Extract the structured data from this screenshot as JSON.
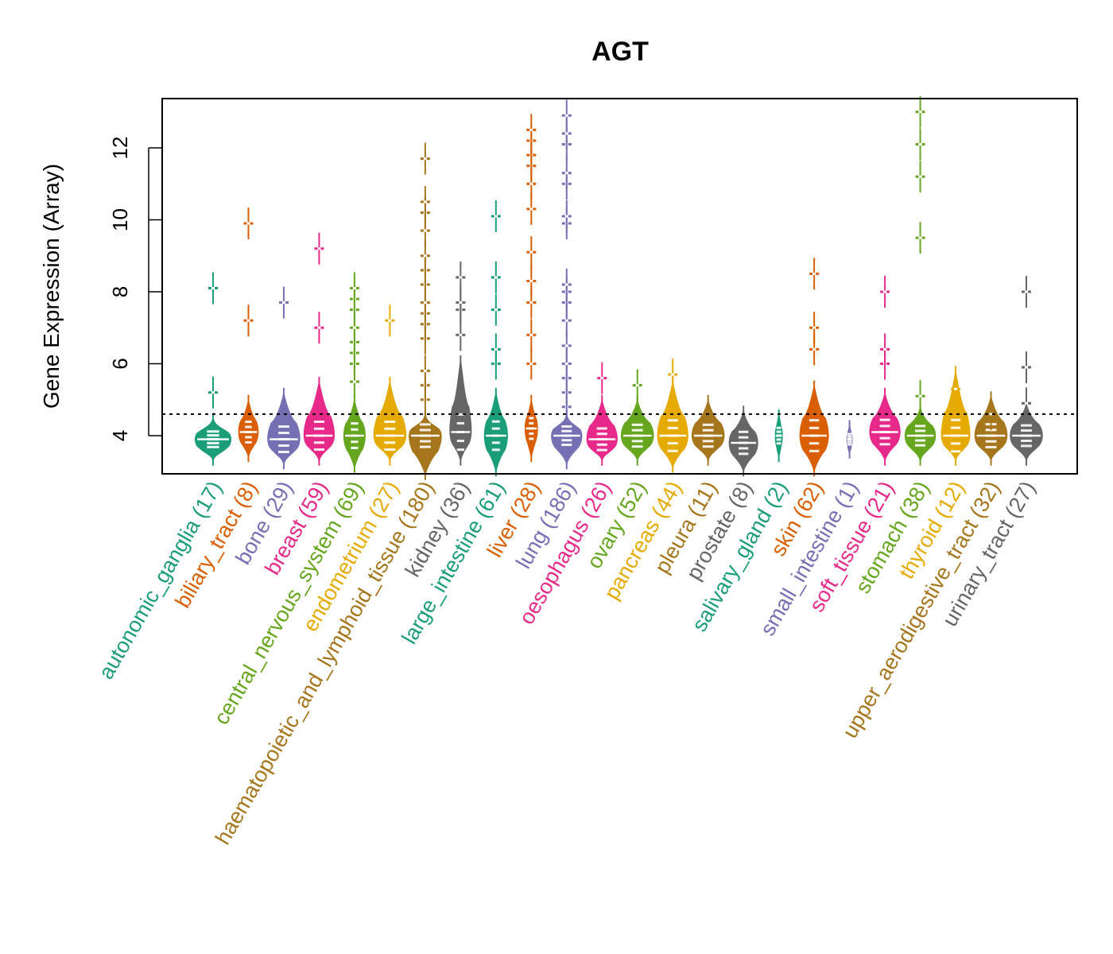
{
  "chart_data": {
    "type": "violin",
    "title": "AGT",
    "xlabel": "",
    "ylabel": "Gene Expression (Array)",
    "ylim": [
      2.9,
      13.3
    ],
    "yticks": [
      4,
      6,
      8,
      10,
      12
    ],
    "reference_line": 4.6,
    "grid": false,
    "legend": "none",
    "categories": [
      {
        "name": "autonomic_ganglia",
        "n": 17,
        "label": "autonomic_ganglia (17)",
        "color": "#1B9E77",
        "median": 3.9,
        "body": [
          3.3,
          4.5
        ],
        "width": 1.0,
        "outliers": [
          5.2,
          8.1
        ]
      },
      {
        "name": "biliary_tract",
        "n": 8,
        "label": "biliary_tract (8)",
        "color": "#D95F02",
        "median": 4.1,
        "body": [
          3.4,
          5.0
        ],
        "width": 0.55,
        "outliers": [
          7.2,
          9.9
        ]
      },
      {
        "name": "bone",
        "n": 29,
        "label": "bone (29)",
        "color": "#7570B3",
        "median": 3.9,
        "body": [
          3.2,
          5.2
        ],
        "width": 0.9,
        "outliers": [
          7.7
        ]
      },
      {
        "name": "breast",
        "n": 59,
        "label": "breast (59)",
        "color": "#E7298A",
        "median": 4.0,
        "body": [
          3.3,
          5.5
        ],
        "width": 0.85,
        "outliers": [
          7.0,
          9.2
        ]
      },
      {
        "name": "central_nervous_system",
        "n": 69,
        "label": "central_nervous_system (69)",
        "color": "#66A61E",
        "median": 4.0,
        "body": [
          3.1,
          5.0
        ],
        "width": 0.6,
        "outliers": [
          5.5,
          6.0,
          6.3,
          6.6,
          7.0,
          7.5,
          7.8,
          8.1
        ]
      },
      {
        "name": "endometrium",
        "n": 27,
        "label": "endometrium (27)",
        "color": "#E6AB02",
        "median": 4.0,
        "body": [
          3.3,
          5.5
        ],
        "width": 0.9,
        "outliers": [
          7.2
        ]
      },
      {
        "name": "haematopoietic_and_lymphoid_tissue",
        "n": 180,
        "label": "haematopoietic_and_lymphoid_tissue (180)",
        "color": "#A6761D",
        "median": 4.0,
        "body": [
          2.9,
          4.6
        ],
        "width": 0.9,
        "outliers": [
          5.0,
          5.4,
          5.8,
          6.7,
          7.1,
          7.4,
          7.7,
          8.2,
          8.6,
          9.0,
          9.7,
          10.2,
          10.5,
          11.7
        ]
      },
      {
        "name": "kidney",
        "n": 36,
        "label": "kidney (36)",
        "color": "#666666",
        "median": 4.1,
        "body": [
          3.3,
          6.1
        ],
        "width": 0.6,
        "outliers": [
          6.8,
          7.5,
          7.7,
          8.4
        ]
      },
      {
        "name": "large_intestine",
        "n": 61,
        "label": "large_intestine (61)",
        "color": "#1B9E77",
        "median": 4.0,
        "body": [
          3.0,
          5.2
        ],
        "width": 0.65,
        "outliers": [
          6.0,
          6.4,
          7.5,
          8.4,
          10.1
        ]
      },
      {
        "name": "liver",
        "n": 28,
        "label": "liver (28)",
        "color": "#D95F02",
        "median": 4.2,
        "body": [
          3.4,
          5.0
        ],
        "width": 0.35,
        "outliers": [
          6.0,
          6.8,
          7.7,
          8.3,
          9.1,
          10.3,
          11.0,
          11.5,
          11.8,
          12.2,
          12.5
        ]
      },
      {
        "name": "lung",
        "n": 186,
        "label": "lung (186)",
        "color": "#7570B3",
        "median": 4.0,
        "body": [
          3.2,
          4.6
        ],
        "width": 0.85,
        "outliers": [
          4.8,
          5.2,
          5.6,
          6.0,
          6.5,
          7.2,
          7.7,
          8.0,
          8.2,
          9.9,
          10.1,
          11.0,
          11.3,
          12.1,
          12.4,
          12.9
        ]
      },
      {
        "name": "oesophagus",
        "n": 26,
        "label": "oesophagus (26)",
        "color": "#E7298A",
        "median": 3.9,
        "body": [
          3.3,
          5.0
        ],
        "width": 0.85,
        "outliers": [
          5.6
        ]
      },
      {
        "name": "ovary",
        "n": 52,
        "label": "ovary (52)",
        "color": "#66A61E",
        "median": 4.0,
        "body": [
          3.3,
          5.0
        ],
        "width": 0.9,
        "outliers": [
          5.4
        ]
      },
      {
        "name": "pancreas",
        "n": 44,
        "label": "pancreas (44)",
        "color": "#E6AB02",
        "median": 4.0,
        "body": [
          3.1,
          5.5
        ],
        "width": 0.85,
        "outliers": [
          5.7
        ]
      },
      {
        "name": "pleura",
        "n": 11,
        "label": "pleura (11)",
        "color": "#A6761D",
        "median": 4.0,
        "body": [
          3.3,
          5.0
        ],
        "width": 0.9,
        "outliers": []
      },
      {
        "name": "prostate",
        "n": 8,
        "label": "prostate (8)",
        "color": "#666666",
        "median": 3.8,
        "body": [
          3.0,
          4.7
        ],
        "width": 0.8,
        "outliers": []
      },
      {
        "name": "salivary_gland",
        "n": 2,
        "label": "salivary_gland (2)",
        "color": "#1B9E77",
        "median": 4.0,
        "body": [
          3.4,
          4.6
        ],
        "width": 0.2,
        "outliers": []
      },
      {
        "name": "skin",
        "n": 62,
        "label": "skin (62)",
        "color": "#D95F02",
        "median": 4.0,
        "body": [
          3.0,
          5.4
        ],
        "width": 0.8,
        "outliers": [
          6.4,
          7.0,
          8.5
        ]
      },
      {
        "name": "small_intestine",
        "n": 1,
        "label": "small_intestine (1)",
        "color": "#7570B3",
        "median": 3.9,
        "body": [
          3.5,
          4.3
        ],
        "width": 0.15,
        "outliers": []
      },
      {
        "name": "soft_tissue",
        "n": 21,
        "label": "soft_tissue (21)",
        "color": "#E7298A",
        "median": 4.1,
        "body": [
          3.3,
          5.2
        ],
        "width": 0.85,
        "outliers": [
          6.0,
          6.4,
          8.0
        ]
      },
      {
        "name": "stomach",
        "n": 38,
        "label": "stomach (38)",
        "color": "#66A61E",
        "median": 4.0,
        "body": [
          3.3,
          4.8
        ],
        "width": 0.85,
        "outliers": [
          5.1,
          9.5,
          11.2,
          12.1,
          13.0
        ]
      },
      {
        "name": "thyroid",
        "n": 12,
        "label": "thyroid (12)",
        "color": "#E6AB02",
        "median": 4.0,
        "body": [
          3.3,
          5.8
        ],
        "width": 0.8,
        "outliers": [
          5.3
        ]
      },
      {
        "name": "upper_aerodigestive_tract",
        "n": 32,
        "label": "upper_aerodigestive_tract (32)",
        "color": "#A6761D",
        "median": 4.0,
        "body": [
          3.3,
          5.1
        ],
        "width": 0.9,
        "outliers": [
          4.6
        ]
      },
      {
        "name": "urinary_tract",
        "n": 27,
        "label": "urinary_tract (27)",
        "color": "#666666",
        "median": 4.0,
        "body": [
          3.3,
          4.9
        ],
        "width": 0.9,
        "outliers": [
          4.9,
          5.9,
          8.0
        ]
      }
    ]
  }
}
